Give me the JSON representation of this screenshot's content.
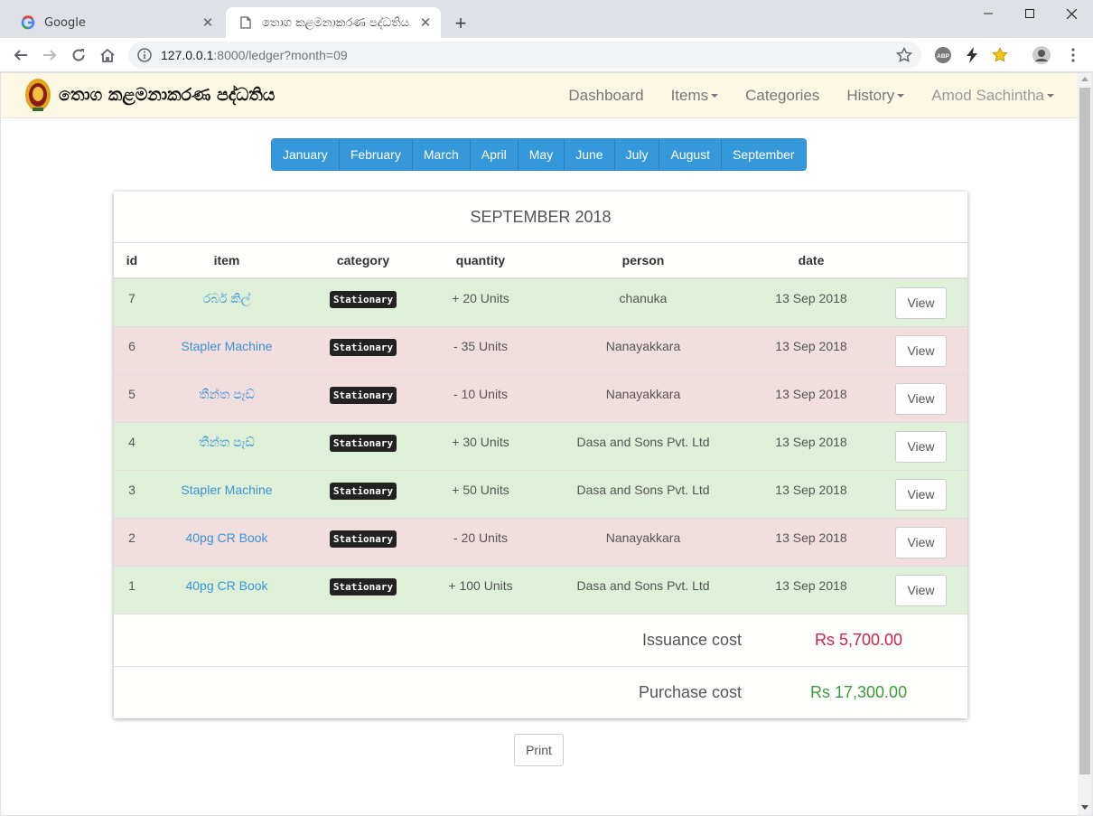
{
  "browser": {
    "tabs": [
      {
        "title": "Google",
        "icon": "google-icon"
      },
      {
        "title": "තොග කළමනාකරණ පද්ධතිය",
        "icon": "page-icon"
      }
    ],
    "url_host": "127.0.0.1",
    "url_rest": ":8000/ledger?month=09"
  },
  "app": {
    "brand": "තොග කළමනාකරණ පද්ධතිය",
    "nav": {
      "dashboard": "Dashboard",
      "items": "Items",
      "categories": "Categories",
      "history": "History",
      "user": "Amod Sachintha"
    }
  },
  "months": [
    "January",
    "February",
    "March",
    "April",
    "May",
    "June",
    "July",
    "August",
    "September"
  ],
  "ledger": {
    "title": "SEPTEMBER 2018",
    "columns": {
      "id": "id",
      "item": "item",
      "category": "category",
      "quantity": "quantity",
      "person": "person",
      "date": "date"
    },
    "rows": [
      {
        "id": "7",
        "item": "රබර් කිල්",
        "category": "Stationary",
        "quantity": "+ 20 Units",
        "person": "chanuka",
        "date": "13 Sep 2018",
        "type": "in",
        "action": "View"
      },
      {
        "id": "6",
        "item": "Stapler Machine",
        "category": "Stationary",
        "quantity": "- 35 Units",
        "person": "Nanayakkara",
        "date": "13 Sep 2018",
        "type": "out",
        "action": "View"
      },
      {
        "id": "5",
        "item": "තීන්ත පෑඩ්",
        "category": "Stationary",
        "quantity": "- 10 Units",
        "person": "Nanayakkara",
        "date": "13 Sep 2018",
        "type": "out",
        "action": "View"
      },
      {
        "id": "4",
        "item": "තීන්ත පෑඩ්",
        "category": "Stationary",
        "quantity": "+ 30 Units",
        "person": "Dasa and Sons Pvt. Ltd",
        "date": "13 Sep 2018",
        "type": "in",
        "action": "View"
      },
      {
        "id": "3",
        "item": "Stapler Machine",
        "category": "Stationary",
        "quantity": "+ 50 Units",
        "person": "Dasa and Sons Pvt. Ltd",
        "date": "13 Sep 2018",
        "type": "in",
        "action": "View"
      },
      {
        "id": "2",
        "item": "40pg CR Book",
        "category": "Stationary",
        "quantity": "- 20 Units",
        "person": "Nanayakkara",
        "date": "13 Sep 2018",
        "type": "out",
        "action": "View"
      },
      {
        "id": "1",
        "item": "40pg CR Book",
        "category": "Stationary",
        "quantity": "+ 100 Units",
        "person": "Dasa and Sons Pvt. Ltd",
        "date": "13 Sep 2018",
        "type": "in",
        "action": "View"
      }
    ],
    "issuance_label": "Issuance cost",
    "issuance_value": "Rs 5,700.00",
    "purchase_label": "Purchase cost",
    "purchase_value": "Rs 17,300.00",
    "print_label": "Print"
  },
  "colors": {
    "month_button": "#3498db",
    "row_in": "#dff0d8",
    "row_out": "#f2dede",
    "issuance": "#c7254e",
    "purchase": "#3c9a3c",
    "navbar": "#fcf8e3"
  }
}
